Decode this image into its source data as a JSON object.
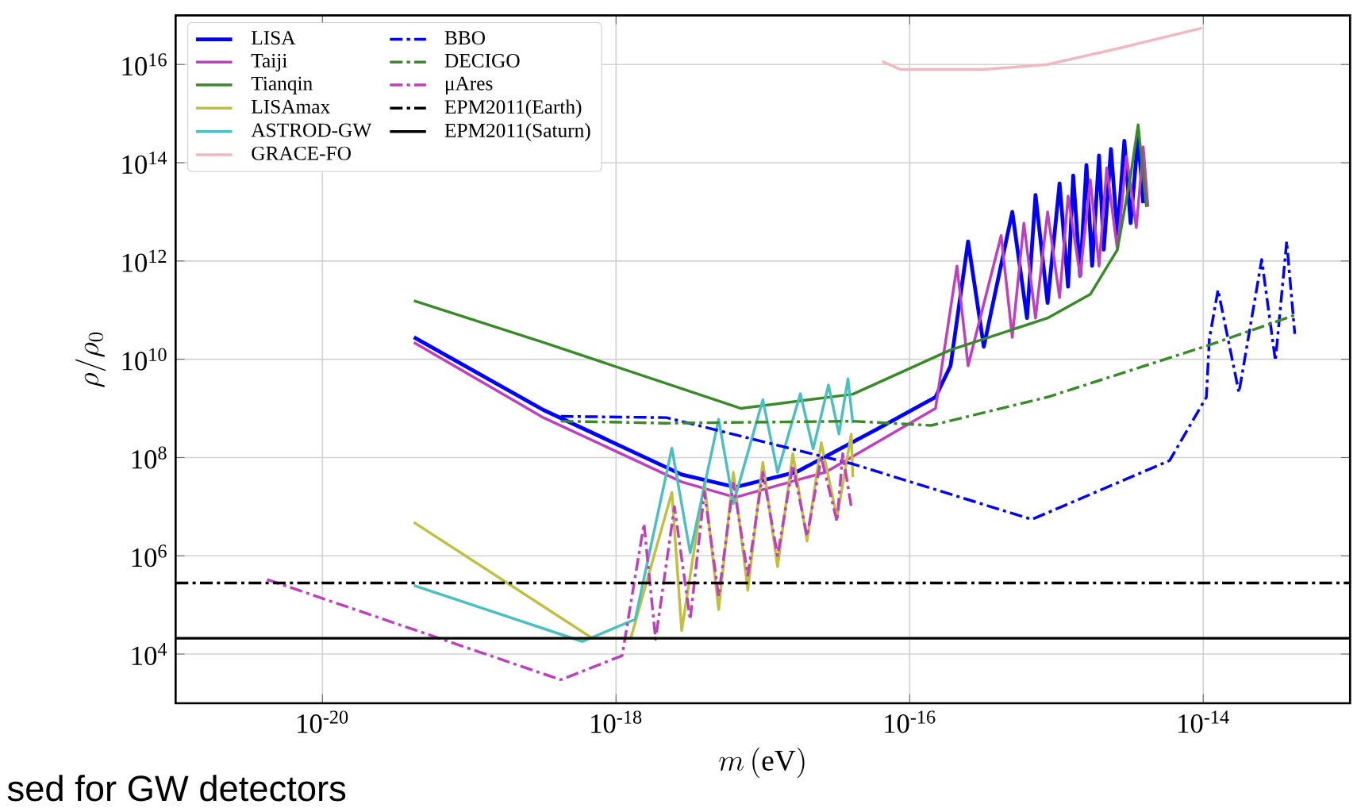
{
  "chart_data": {
    "type": "line",
    "xlabel": "m\\,(\\mathrm{eV})",
    "ylabel": "\\rho/\\rho_0",
    "log": "xy",
    "grid": true,
    "legend": "top left",
    "xlim": [
      1e-21,
      1e-13
    ],
    "ylim": [
      1000.0,
      1e+17
    ],
    "xticks": [
      {
        "value": 1e-20,
        "label": "10$^{-20}$"
      },
      {
        "value": 1e-18,
        "label": "10$^{-18}$"
      },
      {
        "value": 1e-16,
        "label": "10$^{-16}$"
      },
      {
        "value": 1e-14,
        "label": "10$^{-14}$"
      }
    ],
    "yticks": [
      {
        "value": 10000.0,
        "label": "10$^{4}$"
      },
      {
        "value": 1000000.0,
        "label": "10$^{6}$"
      },
      {
        "value": 100000000.0,
        "label": "10$^{8}$"
      },
      {
        "value": 10000000000.0,
        "label": "10$^{10}$"
      },
      {
        "value": 1000000000000.0,
        "label": "10$^{12}$"
      },
      {
        "value": 100000000000000.0,
        "label": "10$^{14}$"
      },
      {
        "value": 1e+16,
        "label": "10$^{16}$"
      }
    ],
    "annotations": [
      "sed for GW detectors"
    ],
    "series": [
      {
        "name": "LISA",
        "color": "#0000ff",
        "line_style": "solid",
        "x": [
          4.2e-20,
          3.2e-19,
          2.8e-18,
          6.5e-18,
          1.7e-17,
          6e-17,
          1.5e-16,
          1.9e-16,
          2.5e-16,
          3.2e-16,
          5e-16,
          6.3e-16,
          7.2e-16,
          8.7e-16,
          1.05e-15,
          1.2e-15,
          1.3e-15,
          1.45e-15,
          1.6e-15,
          1.75e-15,
          1.95e-15,
          2.1e-15,
          2.35e-15,
          2.6e-15,
          2.9e-15,
          3.2e-15,
          3.6e-15,
          3.9e-15
        ],
        "values": [
          28000000000.0,
          930000000.0,
          45000000.0,
          25000000.0,
          51000000.0,
          380000000.0,
          1700000000.0,
          7400000000.0,
          2500000000000.0,
          18000000000.0,
          10000000000000.0,
          69000000000.0,
          22000000000000.0,
          140000000000.0,
          38000000000000.0,
          300000000000.0,
          55000000000000.0,
          500000000000.0,
          90000000000000.0,
          800000000000.0,
          140000000000000.0,
          1700000000000.0,
          190000000000000.0,
          3500000000000.0,
          280000000000000.0,
          5900000000000.0,
          350000000000000.0,
          15000000000000.0
        ]
      },
      {
        "name": "Taiji",
        "color": "#bf3fbf",
        "line_style": "solid",
        "x": [
          4.2e-20,
          3.2e-19,
          2.8e-18,
          6.5e-18,
          2.7e-17,
          1.5e-16,
          2.1e-16,
          2.5e-16,
          4.2e-16,
          5e-16,
          6e-16,
          7.2e-16,
          8.7e-16,
          1.05e-15,
          1.2e-15,
          1.45e-15,
          1.7e-15,
          1.95e-15,
          2.2e-15,
          2.6e-15,
          3e-15,
          3.5e-15,
          3.9e-15,
          4.2e-15
        ],
        "values": [
          22000000000.0,
          650000000.0,
          32000000.0,
          15500000.0,
          51000000.0,
          1000000000.0,
          790000000000.0,
          7400000000.0,
          3300000000000.0,
          28000000000.0,
          5900000000000.0,
          69000000000.0,
          10000000000000.0,
          180000000000.0,
          21000000000000.0,
          500000000000.0,
          45000000000000.0,
          790000000000.0,
          79000000000000.0,
          1700000000000.0,
          135000000000000.0,
          4800000000000.0,
          210000000000000.0,
          12600000000000.0
        ]
      },
      {
        "name": "Tianqin",
        "color": "#3a8a2a",
        "line_style": "solid",
        "x": [
          4.2e-20,
          3.2e-19,
          7.1e-18,
          4.1e-17,
          1.9e-16,
          8.7e-16,
          1.7e-15,
          2.6e-15,
          3.2e-15,
          3.6e-15,
          4.1e-15
        ],
        "values": [
          155000000000.0,
          22000000000.0,
          1000000000.0,
          1950000000.0,
          15500000000.0,
          69000000000.0,
          210000000000.0,
          1700000000000.0,
          55000000000000.0,
          590000000000000.0,
          12600000000000.0
        ]
      },
      {
        "name": "LISAmax",
        "color": "#c0c040",
        "line_style": "solid",
        "x": [
          4.2e-20,
          6.9e-19,
          1.26e-18,
          2.4e-18,
          2.8e-18,
          4e-18,
          5e-18,
          6.3e-18,
          7.9e-18,
          1e-17,
          1.26e-17,
          1.6e-17,
          2e-17,
          2.5e-17,
          3.2e-17,
          4e-17,
          4.1e-17
        ],
        "values": [
          4800000.0,
          21000.0,
          21000.0,
          19500000.0,
          30000.0,
          30000000.0,
          80000.0,
          50000000.0,
          200000.0,
          80000000.0,
          600000.0,
          120000000.0,
          2000000.0,
          200000000.0,
          6000000.0,
          300000000.0,
          40000000.0
        ]
      },
      {
        "name": "ASTROD-GW",
        "color": "#4cc0c0",
        "line_style": "solid",
        "x": [
          4.2e-20,
          5.9e-19,
          1.35e-18,
          2.4e-18,
          3.2e-18,
          5e-18,
          6.3e-18,
          1e-17,
          1.26e-17,
          1.8e-17,
          2.2e-17,
          2.8e-17,
          3.3e-17,
          3.8e-17,
          4.1e-17
        ],
        "values": [
          250000.0,
          18000.0,
          51000.0,
          155000000.0,
          1150000.0,
          600000000.0,
          11500000.0,
          1500000000.0,
          50000000.0,
          2000000000.0,
          150000000.0,
          3000000000.0,
          300000000.0,
          4000000000.0,
          500000000.0
        ]
      },
      {
        "name": "GRACE-FO",
        "color": "#f0b8c0",
        "line_style": "solid",
        "x": [
          6.5e-17,
          8.7e-17,
          3.2e-16,
          8.7e-16,
          2.6e-15,
          9.8e-15
        ],
        "values": [
          1.15e+16,
          7900000000000000.0,
          7900000000000000.0,
          1e+16,
          2.1e+16,
          5.5e+16
        ]
      },
      {
        "name": "BBO",
        "color": "#0000ff",
        "line_style": "dashdot",
        "x": [
          4.2e-19,
          2.2e-18,
          4.1e-17,
          6.8e-16,
          5.9e-15,
          1.05e-14,
          1.1e-14,
          1.26e-14,
          1.75e-14,
          2.5e-14,
          3.1e-14,
          3.7e-14,
          4.2e-14
        ],
        "values": [
          690000000.0,
          650000000.0,
          74000000.0,
          5500000.0,
          87000000.0,
          1700000000.0,
          26000000000.0,
          260000000000.0,
          2100000000.0,
          1070000000000.0,
          9300000000.0,
          2500000000000.0,
          33000000000.0
        ]
      },
      {
        "name": "DECIGO",
        "color": "#3a8a2a",
        "line_style": "dashdot",
        "x": [
          4.2e-19,
          2.2e-18,
          4.1e-17,
          1.4e-16,
          8.7e-16,
          1.1e-14,
          4.2e-14
        ],
        "values": [
          550000000.0,
          500000000.0,
          550000000.0,
          450000000.0,
          1700000000.0,
          19500000000.0,
          79000000000.0
        ]
      },
      {
        "name": "μAres",
        "color": "#bf3fbf",
        "line_style": "dashdot",
        "x": [
          4.2e-21,
          4.2e-19,
          1.1e-18,
          1.55e-18,
          1.86e-18,
          2.5e-18,
          3.2e-18,
          4e-18,
          5e-18,
          6.3e-18,
          7.9e-18,
          1e-17,
          1.26e-17,
          1.6e-17,
          2e-17,
          2.5e-17,
          3.2e-17,
          3.5e-17,
          4e-17
        ],
        "values": [
          330000.0,
          3000.0,
          9300.0,
          4500000.0,
          20000.0,
          10000000.0,
          50000.0,
          20000000.0,
          150000.0,
          30000000.0,
          400000.0,
          50000000.0,
          1000000.0,
          70000000.0,
          2500000.0,
          100000000.0,
          5000000.0,
          120000000.0,
          10000000.0
        ]
      },
      {
        "name": "EPM2011(Earth)",
        "color": "#000000",
        "line_style": "dashdot",
        "x": [
          1e-21,
          1e-13
        ],
        "values": [
          280000.0,
          280000.0
        ]
      },
      {
        "name": "EPM2011(Saturn)",
        "color": "#000000",
        "line_style": "solid",
        "x": [
          1e-21,
          1e-13
        ],
        "values": [
          21000.0,
          21000.0
        ]
      }
    ]
  }
}
